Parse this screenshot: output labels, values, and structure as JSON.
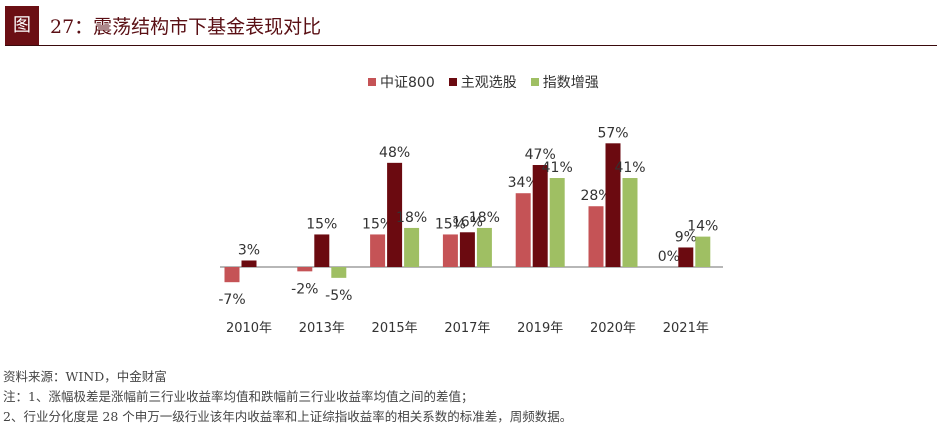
{
  "figure": {
    "badge": "图",
    "title": "27：震荡结构市下基金表现对比"
  },
  "legend": [
    {
      "label": "中证800",
      "color": "#c55356"
    },
    {
      "label": "主观选股",
      "color": "#6b0a10"
    },
    {
      "label": "指数增强",
      "color": "#9fbf63"
    }
  ],
  "chart_data": {
    "type": "bar",
    "title": "震荡结构市下基金表现对比",
    "categories": [
      "2010年",
      "2013年",
      "2015年",
      "2017年",
      "2019年",
      "2020年",
      "2021年"
    ],
    "series": [
      {
        "name": "中证800",
        "values": [
          -7,
          -2,
          15,
          15,
          34,
          28,
          0
        ]
      },
      {
        "name": "主观选股",
        "values": [
          3,
          15,
          48,
          16,
          47,
          57,
          9
        ]
      },
      {
        "name": "指数增强",
        "values": [
          null,
          -5,
          18,
          18,
          41,
          41,
          14
        ]
      }
    ],
    "unit": "%",
    "xlabel": "",
    "ylabel": "",
    "grid": false,
    "legend_position": "top-center",
    "data_labels": true
  },
  "notes": {
    "source": "资料来源：WIND，中金财富",
    "note1": "注：1、涨幅极差是涨幅前三行业收益率均值和跌幅前三行业收益率均值之间的差值；",
    "note2": "2、行业分化度是 28 个申万一级行业该年内收益率和上证综指收益率的相关系数的标准差，周频数据。"
  }
}
